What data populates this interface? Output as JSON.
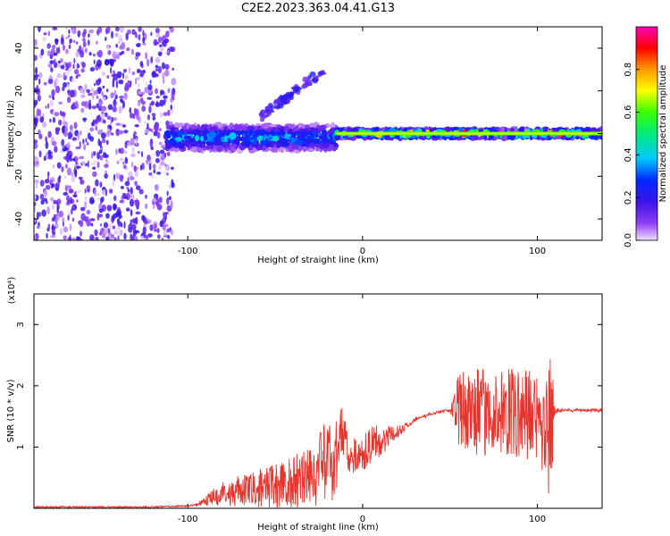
{
  "title": "C2E2.2023.363.04.41.G13",
  "chart_data": [
    {
      "type": "heatmap",
      "xlabel": "Height of straight line (km)",
      "ylabel": "Frequency (Hz)",
      "xlim": [
        -188,
        137
      ],
      "ylim": [
        -50,
        50
      ],
      "xticks": [
        -100,
        0,
        100
      ],
      "yticks": [
        -40,
        -20,
        0,
        20,
        40
      ],
      "colorbar": {
        "label": "Normalized spectral amplitude",
        "range": [
          0.0,
          1.0
        ],
        "ticks": [
          "0.0",
          "0.2",
          "0.4",
          "0.6",
          "0.8"
        ],
        "colormap": "rainbow (violet → blue → cyan → green → yellow → red → magenta)"
      },
      "features": [
        {
          "region": "noise",
          "x_range": [
            -188,
            -108
          ],
          "f_range": [
            -50,
            50
          ],
          "amplitude": 0.1
        },
        {
          "region": "band",
          "x_range": [
            -112,
            -15
          ],
          "f_center": -2,
          "f_halfwidth": 6,
          "amplitude": 0.35
        },
        {
          "region": "band",
          "x_range": [
            -15,
            137
          ],
          "f_center": 0,
          "f_halfwidth": 2,
          "amplitude": 0.8
        },
        {
          "region": "harmonic",
          "x_range": [
            -58,
            -22
          ],
          "f_range": [
            8,
            30
          ],
          "amplitude": 0.15
        }
      ]
    },
    {
      "type": "line",
      "xlabel": "Height of straight line (km)",
      "ylabel": "SNR (10 * v/v)",
      "y_multiplier": "(x10⁴)",
      "xlim": [
        -188,
        137
      ],
      "ylim": [
        0,
        3.5
      ],
      "xticks": [
        -100,
        0,
        100
      ],
      "yticks": [
        1,
        2,
        3
      ],
      "color": "#e8322c",
      "series": [
        {
          "x": [
            -188,
            -150,
            -120,
            -100,
            -95,
            -90,
            -85,
            -80,
            -70,
            -60,
            -50,
            -40,
            -30,
            -25,
            -20,
            -15,
            -12,
            -10,
            -8,
            -5,
            0,
            5,
            10,
            15,
            20,
            25,
            30,
            35,
            40,
            45,
            50,
            55,
            60,
            65,
            70,
            75,
            80,
            85,
            90,
            95,
            100,
            103,
            105,
            108,
            110,
            115,
            120,
            130,
            137
          ],
          "y": [
            0.02,
            0.02,
            0.02,
            0.04,
            0.06,
            0.12,
            0.2,
            0.25,
            0.28,
            0.32,
            0.35,
            0.42,
            0.55,
            0.65,
            0.75,
            0.9,
            1.3,
            1.1,
            0.9,
            0.85,
            0.9,
            1.05,
            1.1,
            1.15,
            1.25,
            1.35,
            1.45,
            1.5,
            1.55,
            1.58,
            1.6,
            1.62,
            1.6,
            1.58,
            1.55,
            1.55,
            1.55,
            1.55,
            1.52,
            1.5,
            1.48,
            1.3,
            1.5,
            1.2,
            1.6,
            1.6,
            1.6,
            1.6,
            1.6
          ],
          "spread": [
            0,
            0,
            0,
            0,
            0.02,
            0.08,
            0.15,
            0.2,
            0.25,
            0.3,
            0.38,
            0.45,
            0.55,
            0.6,
            0.7,
            0.8,
            0.5,
            0.35,
            0.3,
            0.3,
            0.3,
            0.3,
            0.25,
            0.2,
            0.1,
            0.05,
            0.03,
            0.02,
            0.02,
            0.02,
            0.02,
            0.6,
            0.65,
            0.7,
            0.7,
            0.7,
            0.7,
            0.75,
            0.75,
            0.8,
            0.85,
            0.9,
            1.1,
            1.4,
            0.05,
            0.02,
            0.02,
            0.02,
            0.02
          ]
        }
      ]
    }
  ]
}
